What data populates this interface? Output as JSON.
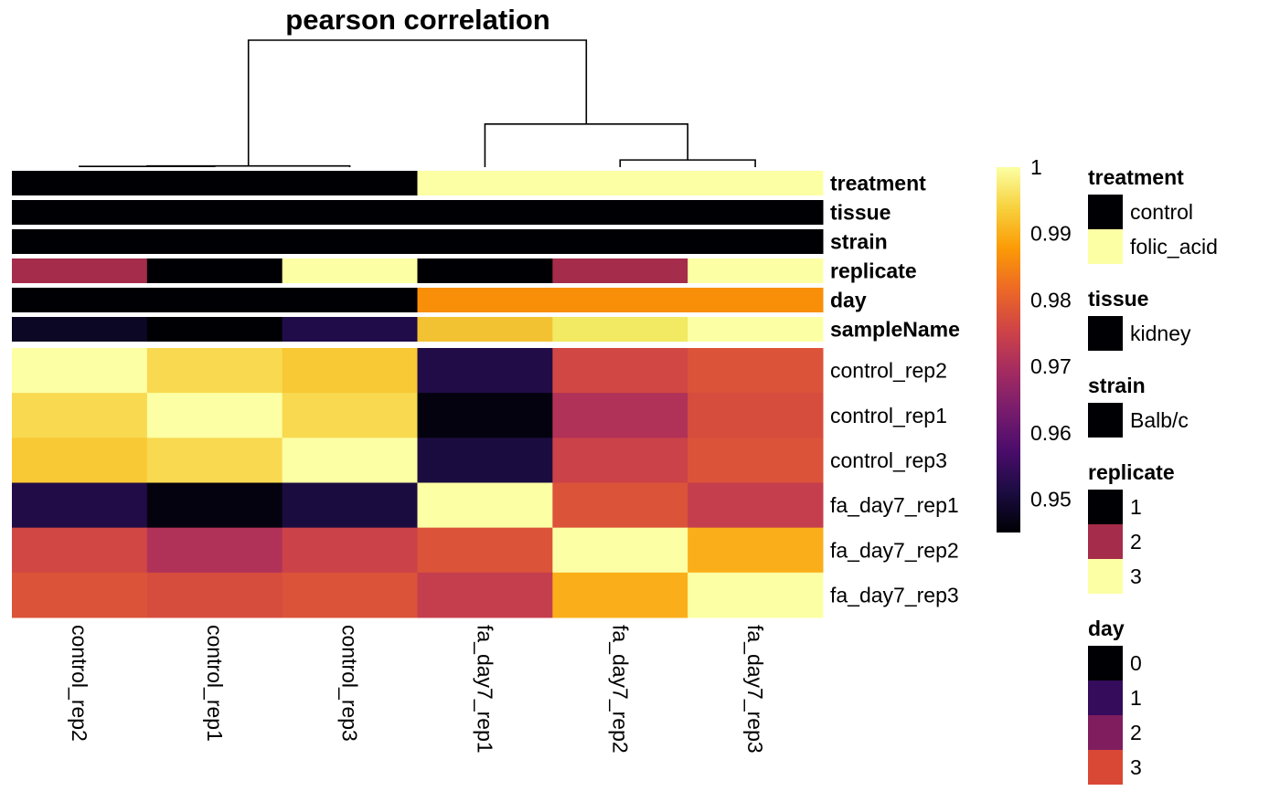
{
  "chart_data": {
    "type": "heatmap",
    "title": "pearson correlation",
    "rows": [
      "control_rep2",
      "control_rep1",
      "control_rep3",
      "fa_day7_rep1",
      "fa_day7_rep2",
      "fa_day7_rep3"
    ],
    "columns": [
      "control_rep2",
      "control_rep1",
      "control_rep3",
      "fa_day7_rep1",
      "fa_day7_rep2",
      "fa_day7_rep3"
    ],
    "values": [
      [
        1.0,
        0.995,
        0.993,
        0.952,
        0.976,
        0.978
      ],
      [
        0.995,
        1.0,
        0.995,
        0.946,
        0.971,
        0.977
      ],
      [
        0.993,
        0.995,
        1.0,
        0.951,
        0.975,
        0.978
      ],
      [
        0.952,
        0.946,
        0.951,
        1.0,
        0.978,
        0.974
      ],
      [
        0.976,
        0.971,
        0.975,
        0.978,
        1.0,
        0.99
      ],
      [
        0.978,
        0.977,
        0.978,
        0.974,
        0.99,
        1.0
      ]
    ],
    "colorbar": {
      "min": 0.945,
      "max": 1.0,
      "ticks": [
        "1",
        "0.99",
        "0.98",
        "0.97",
        "0.96",
        "0.95"
      ]
    },
    "annotation_rows": [
      {
        "label": "treatment",
        "colors": [
          "#000004",
          "#000004",
          "#000004",
          "#fcffa4",
          "#fcffa4",
          "#fcffa4"
        ]
      },
      {
        "label": "tissue",
        "colors": [
          "#000004",
          "#000004",
          "#000004",
          "#000004",
          "#000004",
          "#000004"
        ]
      },
      {
        "label": "strain",
        "colors": [
          "#000004",
          "#000004",
          "#000004",
          "#000004",
          "#000004",
          "#000004"
        ]
      },
      {
        "label": "replicate",
        "colors": [
          "#a52c4a",
          "#000004",
          "#fcffa4",
          "#000004",
          "#a52c4a",
          "#fcffa4"
        ]
      },
      {
        "label": "day",
        "colors": [
          "#000004",
          "#000004",
          "#000004",
          "#f98e09",
          "#f98e09",
          "#f98e09"
        ]
      },
      {
        "label": "sampleName",
        "colors": [
          "#0b0724",
          "#000004",
          "#1f0c48",
          "#f3c233",
          "#f1ea62",
          "#fcffa4"
        ]
      }
    ],
    "legends": [
      {
        "title": "treatment",
        "items": [
          {
            "label": "control",
            "color": "#000004"
          },
          {
            "label": "folic_acid",
            "color": "#fcffa4"
          }
        ]
      },
      {
        "title": "tissue",
        "items": [
          {
            "label": "kidney",
            "color": "#000004"
          }
        ]
      },
      {
        "title": "strain",
        "items": [
          {
            "label": "Balb/c",
            "color": "#000004"
          }
        ]
      },
      {
        "title": "replicate",
        "items": [
          {
            "label": "1",
            "color": "#000004"
          },
          {
            "label": "2",
            "color": "#a52c4a"
          },
          {
            "label": "3",
            "color": "#fcffa4"
          }
        ]
      },
      {
        "title": "day",
        "items": [
          {
            "label": "0",
            "color": "#000004"
          },
          {
            "label": "1",
            "color": "#350b5c"
          },
          {
            "label": "2",
            "color": "#7f1d5f"
          },
          {
            "label": "3",
            "color": "#d84835"
          }
        ]
      }
    ],
    "dendrogram": {
      "merges": [
        {
          "a": 0,
          "b": 1,
          "height": 0.003
        },
        {
          "a": 6,
          "b": 2,
          "height": 0.005
        },
        {
          "a": 4,
          "b": 5,
          "height": 0.03
        },
        {
          "a": 3,
          "b": 8,
          "height": 0.18
        },
        {
          "a": 7,
          "b": 9,
          "height": 0.53
        }
      ]
    }
  }
}
